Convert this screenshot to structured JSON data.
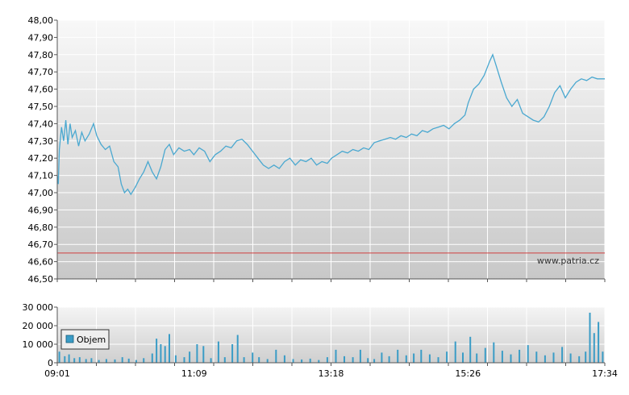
{
  "watermark": "www.patria.cz",
  "legend": {
    "label": "Objem"
  },
  "colors": {
    "line": "#4aa8d0",
    "volume": "#3a9cc6",
    "reference": "#d04040"
  },
  "chart_data": [
    {
      "type": "line",
      "name": "price",
      "ylim": [
        46.5,
        48.0
      ],
      "yticks": [
        "48,00",
        "47,90",
        "47,80",
        "47,70",
        "47,60",
        "47,50",
        "47,40",
        "47,30",
        "47,20",
        "47,10",
        "47,00",
        "46,90",
        "46,80",
        "46,70",
        "46,60",
        "46,50"
      ],
      "xticks": [
        "09:01",
        "11:09",
        "13:18",
        "15:26",
        "17:34"
      ],
      "reference_line": 46.65,
      "xrange": [
        "09:01",
        "17:34"
      ],
      "grid": true,
      "points": [
        [
          "09:01",
          47.1
        ],
        [
          "09:02",
          47.05
        ],
        [
          "09:03",
          47.25
        ],
        [
          "09:05",
          47.38
        ],
        [
          "09:07",
          47.3
        ],
        [
          "09:09",
          47.42
        ],
        [
          "09:11",
          47.28
        ],
        [
          "09:13",
          47.4
        ],
        [
          "09:15",
          47.32
        ],
        [
          "09:18",
          47.36
        ],
        [
          "09:21",
          47.27
        ],
        [
          "09:24",
          47.35
        ],
        [
          "09:27",
          47.3
        ],
        [
          "09:31",
          47.34
        ],
        [
          "09:35",
          47.4
        ],
        [
          "09:38",
          47.33
        ],
        [
          "09:42",
          47.28
        ],
        [
          "09:46",
          47.25
        ],
        [
          "09:50",
          47.27
        ],
        [
          "09:54",
          47.18
        ],
        [
          "09:58",
          47.15
        ],
        [
          "10:01",
          47.05
        ],
        [
          "10:04",
          47.0
        ],
        [
          "10:07",
          47.02
        ],
        [
          "10:10",
          46.99
        ],
        [
          "10:14",
          47.03
        ],
        [
          "10:18",
          47.08
        ],
        [
          "10:22",
          47.12
        ],
        [
          "10:26",
          47.18
        ],
        [
          "10:30",
          47.12
        ],
        [
          "10:34",
          47.08
        ],
        [
          "10:38",
          47.15
        ],
        [
          "10:42",
          47.25
        ],
        [
          "10:46",
          47.28
        ],
        [
          "10:50",
          47.22
        ],
        [
          "10:55",
          47.26
        ],
        [
          "11:00",
          47.24
        ],
        [
          "11:05",
          47.25
        ],
        [
          "11:09",
          47.22
        ],
        [
          "11:14",
          47.26
        ],
        [
          "11:19",
          47.24
        ],
        [
          "11:24",
          47.18
        ],
        [
          "11:29",
          47.22
        ],
        [
          "11:34",
          47.24
        ],
        [
          "11:39",
          47.27
        ],
        [
          "11:44",
          47.26
        ],
        [
          "11:49",
          47.3
        ],
        [
          "11:54",
          47.31
        ],
        [
          "11:59",
          47.28
        ],
        [
          "12:04",
          47.24
        ],
        [
          "12:09",
          47.2
        ],
        [
          "12:14",
          47.16
        ],
        [
          "12:19",
          47.14
        ],
        [
          "12:24",
          47.16
        ],
        [
          "12:29",
          47.14
        ],
        [
          "12:34",
          47.18
        ],
        [
          "12:39",
          47.2
        ],
        [
          "12:44",
          47.16
        ],
        [
          "12:49",
          47.19
        ],
        [
          "12:54",
          47.18
        ],
        [
          "12:59",
          47.2
        ],
        [
          "13:04",
          47.16
        ],
        [
          "13:09",
          47.18
        ],
        [
          "13:14",
          47.17
        ],
        [
          "13:18",
          47.2
        ],
        [
          "13:23",
          47.22
        ],
        [
          "13:28",
          47.24
        ],
        [
          "13:33",
          47.23
        ],
        [
          "13:38",
          47.25
        ],
        [
          "13:43",
          47.24
        ],
        [
          "13:48",
          47.26
        ],
        [
          "13:53",
          47.25
        ],
        [
          "13:58",
          47.29
        ],
        [
          "14:03",
          47.3
        ],
        [
          "14:08",
          47.31
        ],
        [
          "14:13",
          47.32
        ],
        [
          "14:18",
          47.31
        ],
        [
          "14:23",
          47.33
        ],
        [
          "14:28",
          47.32
        ],
        [
          "14:33",
          47.34
        ],
        [
          "14:38",
          47.33
        ],
        [
          "14:43",
          47.36
        ],
        [
          "14:48",
          47.35
        ],
        [
          "14:53",
          47.37
        ],
        [
          "14:58",
          47.38
        ],
        [
          "15:03",
          47.39
        ],
        [
          "15:08",
          47.37
        ],
        [
          "15:13",
          47.4
        ],
        [
          "15:18",
          47.42
        ],
        [
          "15:23",
          47.45
        ],
        [
          "15:26",
          47.52
        ],
        [
          "15:31",
          47.6
        ],
        [
          "15:36",
          47.63
        ],
        [
          "15:41",
          47.68
        ],
        [
          "15:46",
          47.76
        ],
        [
          "15:49",
          47.8
        ],
        [
          "15:52",
          47.74
        ],
        [
          "15:57",
          47.64
        ],
        [
          "16:02",
          47.55
        ],
        [
          "16:07",
          47.5
        ],
        [
          "16:12",
          47.54
        ],
        [
          "16:17",
          47.46
        ],
        [
          "16:22",
          47.44
        ],
        [
          "16:27",
          47.42
        ],
        [
          "16:32",
          47.41
        ],
        [
          "16:37",
          47.44
        ],
        [
          "16:42",
          47.5
        ],
        [
          "16:47",
          47.58
        ],
        [
          "16:52",
          47.62
        ],
        [
          "16:57",
          47.55
        ],
        [
          "17:02",
          47.6
        ],
        [
          "17:07",
          47.64
        ],
        [
          "17:12",
          47.66
        ],
        [
          "17:17",
          47.65
        ],
        [
          "17:22",
          47.67
        ],
        [
          "17:27",
          47.66
        ],
        [
          "17:34",
          47.66
        ]
      ]
    },
    {
      "type": "bar",
      "name": "Objem",
      "ylim": [
        0,
        30000
      ],
      "yticks": [
        "30 000",
        "20 000",
        "10 000",
        "0"
      ],
      "xrange": [
        "09:01",
        "17:34"
      ],
      "grid": true,
      "bars": [
        [
          "09:03",
          6000
        ],
        [
          "09:08",
          3500
        ],
        [
          "09:12",
          4500
        ],
        [
          "09:17",
          2500
        ],
        [
          "09:22",
          3000
        ],
        [
          "09:28",
          2000
        ],
        [
          "09:33",
          2500
        ],
        [
          "09:40",
          1500
        ],
        [
          "09:47",
          2000
        ],
        [
          "09:55",
          1800
        ],
        [
          "10:02",
          3000
        ],
        [
          "10:08",
          2200
        ],
        [
          "10:15",
          1500
        ],
        [
          "10:22",
          2500
        ],
        [
          "10:30",
          5000
        ],
        [
          "10:34",
          13000
        ],
        [
          "10:38",
          10000
        ],
        [
          "10:42",
          9000
        ],
        [
          "10:46",
          15500
        ],
        [
          "10:52",
          4000
        ],
        [
          "11:00",
          3000
        ],
        [
          "11:05",
          6000
        ],
        [
          "11:12",
          10000
        ],
        [
          "11:18",
          9000
        ],
        [
          "11:25",
          2500
        ],
        [
          "11:32",
          11500
        ],
        [
          "11:38",
          3000
        ],
        [
          "11:45",
          10000
        ],
        [
          "11:50",
          15000
        ],
        [
          "11:56",
          3000
        ],
        [
          "12:04",
          5500
        ],
        [
          "12:10",
          3000
        ],
        [
          "12:18",
          2000
        ],
        [
          "12:26",
          7000
        ],
        [
          "12:34",
          4000
        ],
        [
          "12:42",
          2000
        ],
        [
          "12:50",
          1800
        ],
        [
          "12:58",
          2200
        ],
        [
          "13:06",
          1500
        ],
        [
          "13:14",
          3000
        ],
        [
          "13:22",
          7000
        ],
        [
          "13:30",
          3500
        ],
        [
          "13:38",
          3000
        ],
        [
          "13:45",
          7000
        ],
        [
          "13:52",
          2500
        ],
        [
          "13:58",
          2000
        ],
        [
          "14:05",
          5500
        ],
        [
          "14:12",
          3500
        ],
        [
          "14:20",
          7000
        ],
        [
          "14:28",
          4000
        ],
        [
          "14:35",
          5000
        ],
        [
          "14:42",
          7000
        ],
        [
          "14:50",
          4500
        ],
        [
          "14:58",
          3000
        ],
        [
          "15:06",
          6000
        ],
        [
          "15:14",
          11500
        ],
        [
          "15:21",
          5500
        ],
        [
          "15:28",
          14000
        ],
        [
          "15:34",
          5000
        ],
        [
          "15:42",
          8000
        ],
        [
          "15:50",
          11000
        ],
        [
          "15:58",
          6500
        ],
        [
          "16:06",
          4500
        ],
        [
          "16:14",
          7000
        ],
        [
          "16:22",
          9500
        ],
        [
          "16:30",
          6000
        ],
        [
          "16:38",
          4000
        ],
        [
          "16:46",
          5500
        ],
        [
          "16:54",
          8500
        ],
        [
          "17:02",
          5000
        ],
        [
          "17:10",
          3500
        ],
        [
          "17:16",
          6000
        ],
        [
          "17:20",
          27000
        ],
        [
          "17:24",
          16000
        ],
        [
          "17:28",
          22000
        ],
        [
          "17:32",
          6000
        ]
      ]
    }
  ]
}
